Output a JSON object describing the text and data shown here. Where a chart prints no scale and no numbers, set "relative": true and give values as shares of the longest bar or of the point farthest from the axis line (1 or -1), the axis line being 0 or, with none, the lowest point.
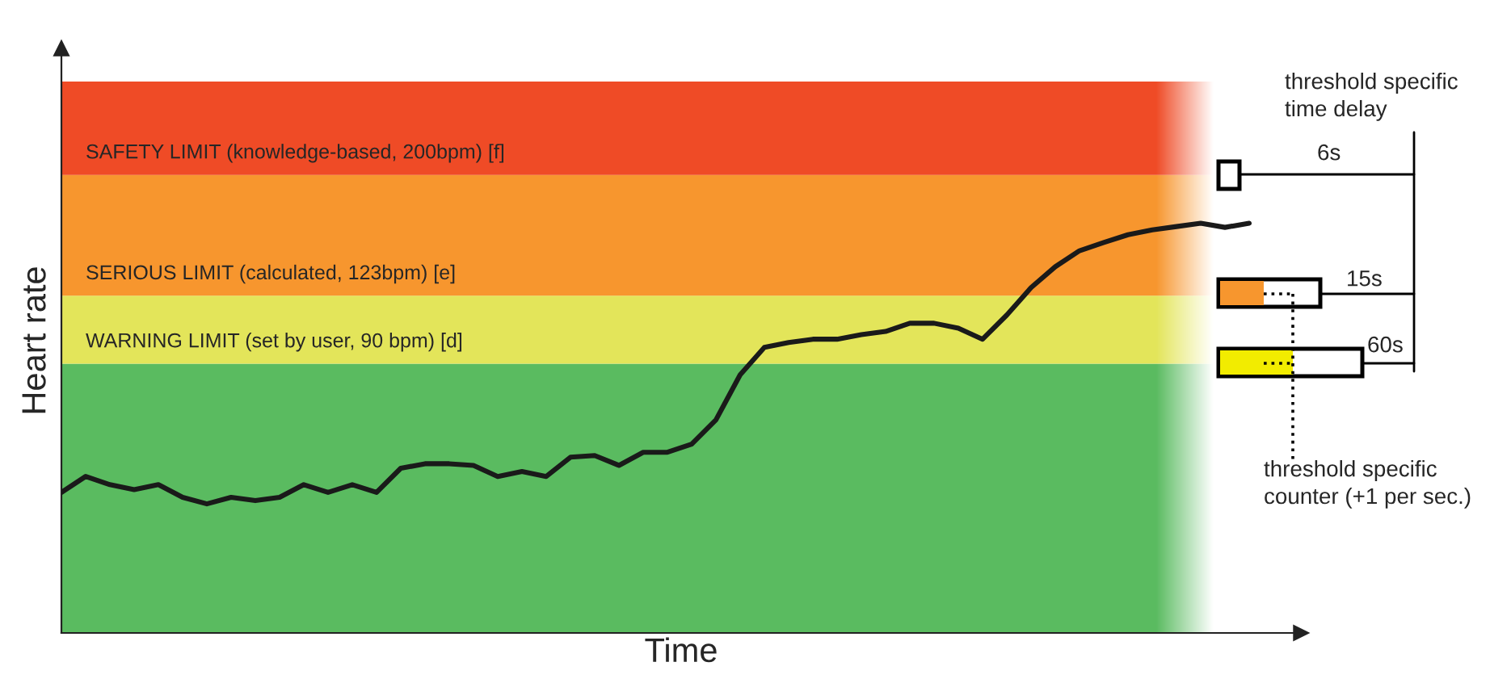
{
  "chart_data": {
    "type": "line",
    "relative": true,
    "xlabel": "Time",
    "ylabel": "Heart rate",
    "categories": [
      null,
      null,
      null,
      null,
      null,
      null,
      null,
      null,
      null,
      null,
      null,
      null,
      null,
      null,
      null,
      null,
      null,
      null,
      null,
      null,
      null,
      null,
      null,
      null,
      null,
      null,
      null,
      null,
      null,
      null,
      null,
      null,
      null,
      null,
      null,
      null,
      null,
      null,
      null,
      null,
      null,
      null,
      null,
      null,
      null,
      null,
      null,
      null,
      null,
      null
    ],
    "series": [
      {
        "color": "#1a1a1a",
        "values": [
          0.343,
          0.382,
          0.362,
          0.35,
          0.362,
          0.331,
          0.315,
          0.331,
          0.323,
          0.331,
          0.362,
          0.343,
          0.362,
          0.343,
          0.402,
          0.413,
          0.413,
          0.409,
          0.382,
          0.394,
          0.382,
          0.429,
          0.433,
          0.409,
          0.441,
          0.441,
          0.461,
          0.52,
          0.63,
          0.697,
          0.709,
          0.717,
          0.717,
          0.728,
          0.736,
          0.756,
          0.756,
          0.744,
          0.717,
          0.776,
          0.843,
          0.894,
          0.933,
          0.953,
          0.972,
          0.984,
          0.992,
          1.0,
          0.99,
          1.0
        ]
      }
    ],
    "bands": [
      {
        "axis": "y",
        "from": 0,
        "to": 0.657,
        "color": "#5abb60"
      },
      {
        "axis": "y",
        "from": 0.657,
        "to": 0.823,
        "color": "#e3e55a",
        "label": "WARNING LIMIT (set by user, 90 bpm) [d]"
      },
      {
        "axis": "y",
        "from": 0.823,
        "to": 1.118,
        "color": "#f7962e",
        "label": "SERIOUS LIMIT (calculated, 123bpm) [e]"
      },
      {
        "axis": "y",
        "from": 1.118,
        "to": 1.346,
        "color": "#ef4b26",
        "label": "SAFETY LIMIT (knowledge-based, 200bpm) [f]"
      }
    ],
    "annotations": [
      "threshold specific\ntime delay",
      "6s",
      "15s",
      "60s",
      "threshold specific\ncounter (+1 per sec.)"
    ],
    "grid": false,
    "legend": false
  }
}
